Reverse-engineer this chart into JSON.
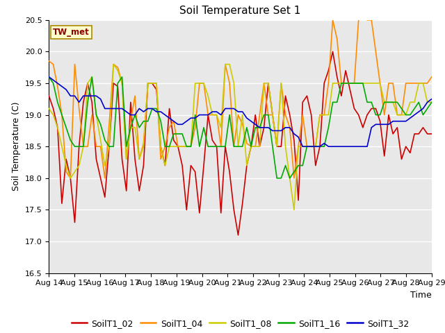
{
  "title": "Soil Temperature Set 1",
  "xlabel": "Time",
  "ylabel": "Soil Temperature (C)",
  "ylim": [
    16.5,
    20.5
  ],
  "label_text": "TW_met",
  "background_color": "#e8e8e8",
  "series": {
    "SoilT1_02": {
      "color": "#cc0000",
      "data": [
        19.3,
        19.1,
        18.8,
        17.6,
        18.3,
        18.0,
        17.3,
        18.5,
        19.2,
        19.5,
        19.2,
        18.3,
        18.0,
        17.7,
        18.5,
        19.5,
        19.45,
        18.3,
        17.8,
        19.2,
        18.3,
        17.8,
        18.2,
        19.5,
        19.5,
        19.4,
        18.5,
        18.2,
        19.1,
        18.6,
        18.5,
        18.2,
        17.5,
        18.2,
        18.1,
        17.45,
        18.2,
        19.0,
        18.6,
        18.5,
        17.45,
        18.5,
        18.1,
        17.5,
        17.1,
        17.6,
        18.2,
        18.5,
        19.0,
        18.5,
        18.8,
        19.5,
        19.0,
        18.5,
        18.5,
        19.3,
        19.0,
        18.6,
        17.65,
        19.2,
        19.3,
        19.0,
        18.2,
        18.5,
        19.5,
        19.7,
        20.0,
        19.6,
        19.3,
        19.7,
        19.4,
        19.1,
        19.0,
        18.8,
        19.0,
        19.1,
        19.1,
        18.9,
        18.35,
        19.0,
        18.7,
        18.8,
        18.3,
        18.5,
        18.4,
        18.7,
        18.7,
        18.8,
        18.7,
        18.7
      ]
    },
    "SoilT1_04": {
      "color": "#ff8c00",
      "data": [
        19.85,
        19.8,
        19.45,
        19.0,
        18.1,
        18.0,
        19.8,
        19.1,
        18.5,
        18.5,
        19.0,
        18.5,
        18.5,
        18.0,
        18.85,
        19.8,
        19.75,
        19.5,
        18.3,
        18.9,
        19.3,
        18.3,
        18.55,
        19.5,
        19.5,
        19.5,
        18.3,
        18.5,
        18.8,
        18.9,
        18.5,
        18.5,
        18.5,
        18.5,
        18.8,
        19.5,
        19.5,
        19.0,
        19.0,
        19.0,
        18.5,
        19.8,
        19.5,
        18.5,
        19.0,
        18.85,
        18.55,
        18.5,
        18.5,
        19.0,
        19.5,
        19.0,
        19.0,
        18.5,
        19.5,
        19.0,
        18.8,
        18.0,
        18.5,
        19.0,
        18.5,
        18.5,
        18.5,
        19.0,
        19.0,
        19.5,
        20.5,
        20.2,
        19.5,
        19.5,
        19.5,
        19.5,
        20.5,
        20.8,
        20.5,
        20.5,
        20.0,
        19.5,
        19.0,
        19.5,
        19.5,
        19.0,
        19.0,
        19.5,
        19.5,
        19.5,
        19.5,
        19.5,
        19.5,
        19.6
      ]
    },
    "SoilT1_08": {
      "color": "#cccc00",
      "data": [
        19.1,
        19.0,
        18.8,
        18.5,
        18.2,
        18.0,
        18.1,
        18.2,
        18.5,
        19.5,
        19.6,
        19.0,
        18.6,
        18.2,
        18.5,
        19.8,
        19.7,
        19.5,
        18.3,
        18.8,
        18.8,
        18.3,
        18.5,
        19.5,
        19.5,
        19.5,
        18.5,
        18.2,
        18.5,
        18.5,
        18.5,
        18.5,
        18.5,
        18.5,
        19.5,
        19.5,
        19.5,
        19.3,
        19.0,
        19.0,
        18.8,
        19.8,
        19.8,
        19.5,
        18.5,
        19.0,
        18.2,
        18.5,
        18.5,
        18.5,
        19.5,
        19.5,
        19.0,
        18.5,
        19.5,
        18.5,
        18.0,
        17.5,
        18.5,
        18.5,
        18.5,
        18.5,
        18.5,
        19.0,
        19.0,
        19.0,
        19.5,
        19.5,
        19.5,
        19.5,
        19.5,
        19.5,
        19.5,
        19.5,
        19.5,
        19.5,
        19.5,
        19.5,
        19.2,
        19.2,
        19.2,
        19.0,
        19.0,
        19.0,
        19.2,
        19.2,
        19.5,
        19.5,
        19.2,
        19.2
      ]
    },
    "SoilT1_16": {
      "color": "#00aa00",
      "data": [
        19.6,
        19.5,
        19.2,
        19.0,
        18.8,
        18.6,
        18.5,
        18.5,
        18.5,
        19.2,
        19.6,
        19.0,
        18.85,
        18.6,
        18.5,
        18.5,
        19.5,
        19.6,
        18.5,
        18.8,
        19.0,
        18.8,
        18.9,
        18.9,
        19.1,
        19.1,
        18.9,
        18.5,
        18.5,
        18.7,
        18.7,
        18.7,
        18.5,
        18.5,
        19.0,
        18.5,
        18.8,
        18.5,
        18.5,
        18.5,
        18.5,
        18.5,
        19.0,
        18.5,
        18.5,
        18.5,
        18.8,
        18.5,
        18.8,
        18.8,
        19.0,
        19.0,
        18.5,
        18.0,
        18.0,
        18.2,
        18.0,
        18.1,
        18.2,
        18.2,
        18.5,
        18.5,
        18.5,
        18.5,
        18.5,
        18.8,
        19.2,
        19.2,
        19.5,
        19.5,
        19.5,
        19.5,
        19.5,
        19.5,
        19.2,
        19.2,
        19.0,
        19.0,
        19.2,
        19.2,
        19.2,
        19.2,
        19.1,
        19.0,
        19.0,
        19.1,
        19.2,
        19.0,
        19.1,
        19.2
      ]
    },
    "SoilT1_32": {
      "color": "#0000cc",
      "data": [
        19.6,
        19.55,
        19.5,
        19.45,
        19.4,
        19.3,
        19.3,
        19.2,
        19.3,
        19.3,
        19.3,
        19.3,
        19.25,
        19.1,
        19.1,
        19.1,
        19.1,
        19.1,
        19.05,
        19.0,
        19.0,
        19.1,
        19.05,
        19.1,
        19.1,
        19.05,
        19.05,
        19.0,
        18.95,
        18.9,
        18.85,
        18.85,
        18.9,
        18.95,
        18.95,
        19.0,
        19.0,
        19.0,
        19.05,
        19.05,
        19.0,
        19.1,
        19.1,
        19.1,
        19.05,
        19.05,
        18.95,
        18.9,
        18.85,
        18.8,
        18.8,
        18.8,
        18.75,
        18.75,
        18.75,
        18.8,
        18.8,
        18.7,
        18.65,
        18.5,
        18.5,
        18.5,
        18.5,
        18.5,
        18.55,
        18.5,
        18.5,
        18.5,
        18.5,
        18.5,
        18.5,
        18.5,
        18.5,
        18.5,
        18.5,
        18.8,
        18.85,
        18.85,
        18.85,
        18.85,
        18.9,
        18.9,
        18.9,
        18.9,
        18.95,
        19.0,
        19.05,
        19.1,
        19.2,
        19.25
      ]
    }
  },
  "xtick_labels": [
    "Aug 14",
    "Aug 15",
    "Aug 16",
    "Aug 17",
    "Aug 18",
    "Aug 19",
    "Aug 20",
    "Aug 21",
    "Aug 22",
    "Aug 23",
    "Aug 24",
    "Aug 25",
    "Aug 26",
    "Aug 27",
    "Aug 28",
    "Aug 29"
  ],
  "n_points": 90,
  "title_fontsize": 11,
  "axis_label_fontsize": 9,
  "tick_fontsize": 8,
  "legend_fontsize": 9
}
